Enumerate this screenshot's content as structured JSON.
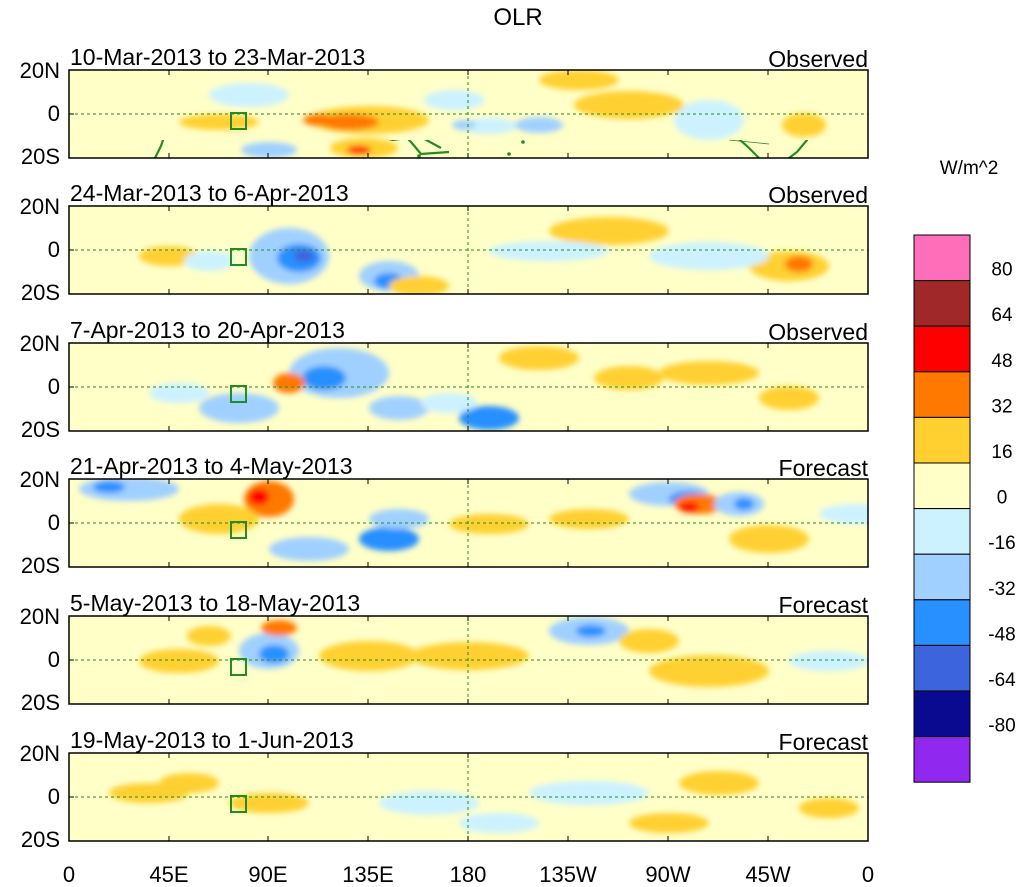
{
  "title": "OLR",
  "panels": [
    {
      "date_range": "10-Mar-2013 to 23-Mar-2013",
      "status": "Observed"
    },
    {
      "date_range": "24-Mar-2013 to 6-Apr-2013",
      "status": "Observed"
    },
    {
      "date_range": "7-Apr-2013 to 20-Apr-2013",
      "status": "Observed"
    },
    {
      "date_range": "21-Apr-2013 to 4-May-2013",
      "status": "Forecast"
    },
    {
      "date_range": "5-May-2013 to 18-May-2013",
      "status": "Forecast"
    },
    {
      "date_range": "19-May-2013 to 1-Jun-2013",
      "status": "Forecast"
    }
  ],
  "lat_labels": [
    "20N",
    "0",
    "20S"
  ],
  "lon_labels": [
    "0",
    "45E",
    "90E",
    "135E",
    "180",
    "135W",
    "90W",
    "45W",
    "0"
  ],
  "colorbar": {
    "unit": "W/m^2",
    "labels": [
      "80",
      "64",
      "48",
      "32",
      "16",
      "0",
      "-16",
      "-32",
      "-48",
      "-64",
      "-80"
    ],
    "colors": [
      "#ff6eb8",
      "#a02828",
      "#ff0000",
      "#ff7800",
      "#ffd030",
      "#ffffc8",
      "#ccf2ff",
      "#a0d0ff",
      "#2890ff",
      "#3c64dc",
      "#0a0a90",
      "#9028f0"
    ]
  },
  "map_colors": {
    "land_outline": "#228b22",
    "box_outline": "#228b22",
    "grid_line": "#228b22"
  }
}
